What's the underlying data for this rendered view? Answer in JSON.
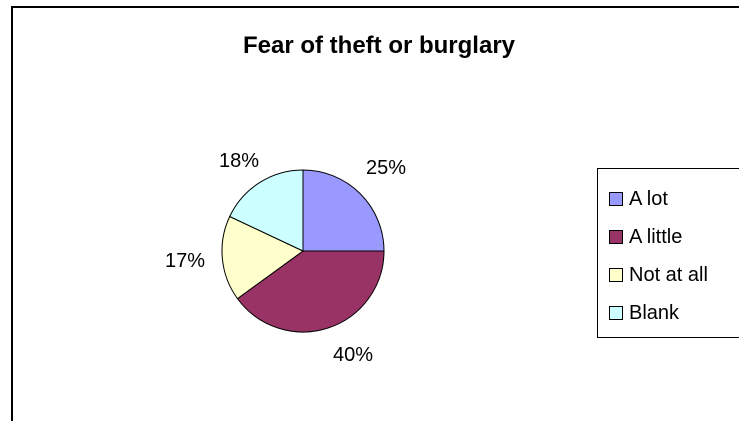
{
  "chart_data": {
    "type": "pie",
    "title": "Fear of theft or burglary",
    "categories": [
      "A lot",
      "A little",
      "Not at all",
      "Blank"
    ],
    "values": [
      25,
      40,
      17,
      18
    ],
    "value_labels": [
      "25%",
      "40%",
      "17%",
      "18%"
    ],
    "colors": [
      "#9999ff",
      "#993366",
      "#ffffcc",
      "#ccffff"
    ],
    "legend_position": "right"
  }
}
